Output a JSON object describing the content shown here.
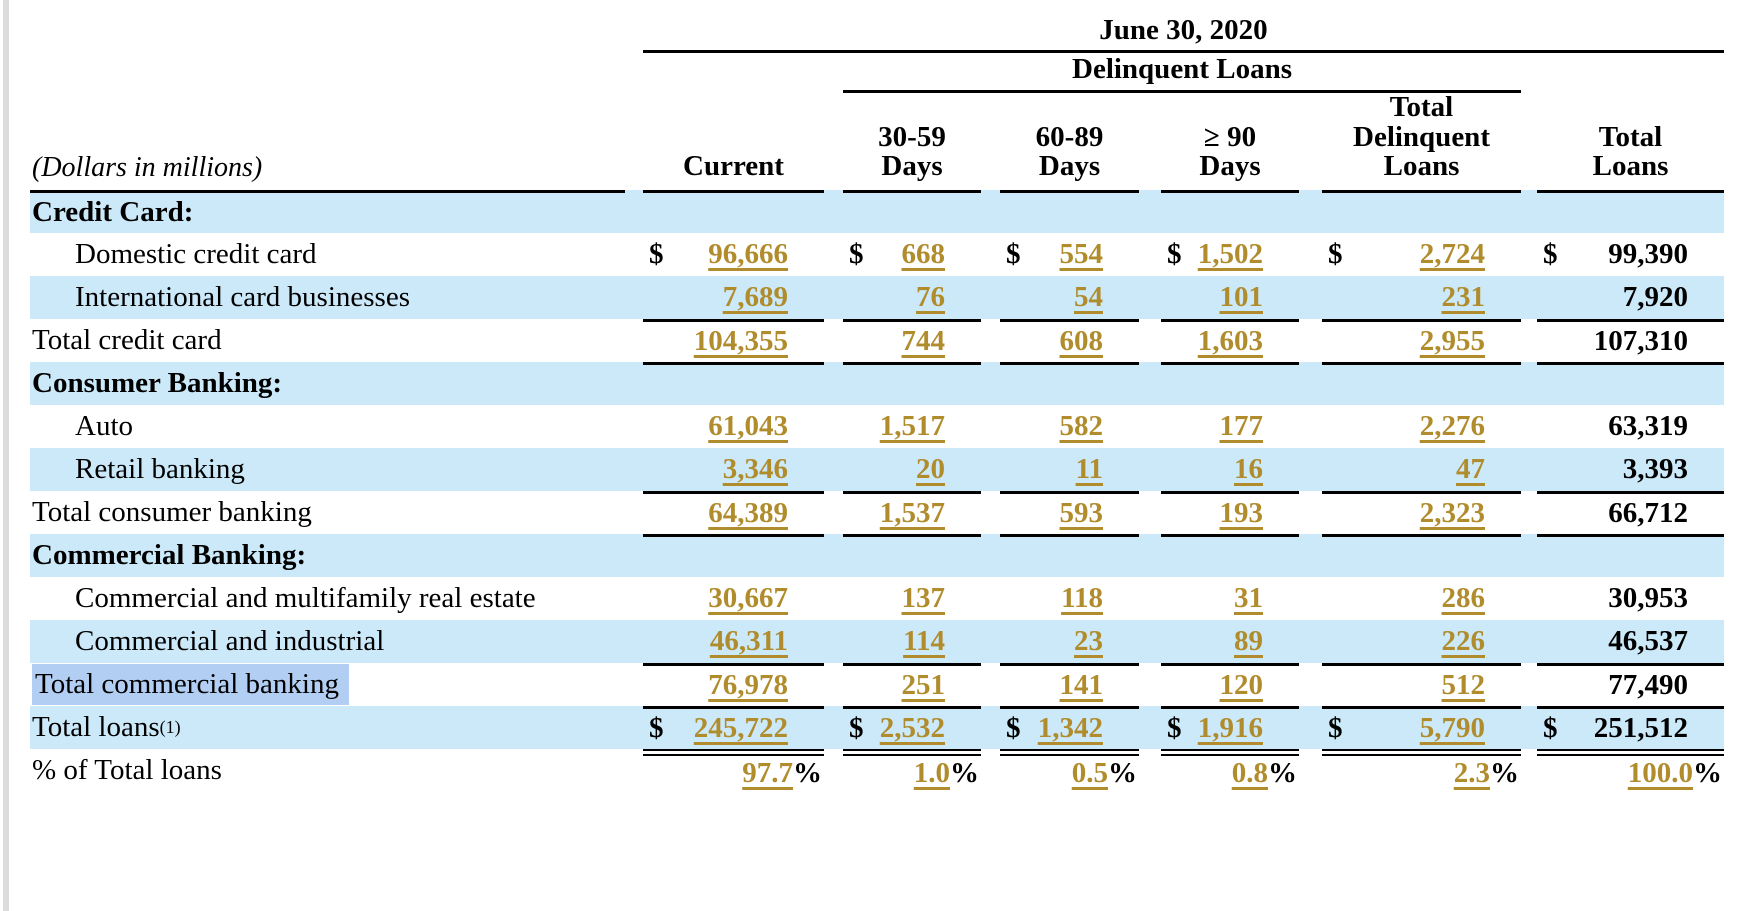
{
  "table": {
    "date_header": "June 30, 2020",
    "group_header": "Delinquent Loans",
    "dollars_note": "(Dollars in millions)",
    "columns": [
      {
        "id": "current",
        "lines": [
          "Current"
        ]
      },
      {
        "id": "days-30-59",
        "lines": [
          "30-59",
          "Days"
        ]
      },
      {
        "id": "days-60-89",
        "lines": [
          "60-89",
          "Days"
        ]
      },
      {
        "id": "days-90-plus",
        "lines": [
          "≥ 90",
          "Days"
        ]
      },
      {
        "id": "total-delinquent",
        "lines": [
          "Total",
          "Delinquent",
          "Loans"
        ]
      },
      {
        "id": "total-loans",
        "lines": [
          "Total",
          "Loans"
        ]
      }
    ],
    "rows": [
      {
        "id": "credit-card-header",
        "type": "section",
        "label": "Credit Card:",
        "shaded": true,
        "rule_above": "all",
        "values": []
      },
      {
        "id": "domestic-credit-card",
        "type": "item",
        "label": "Domestic credit card",
        "shaded": false,
        "dollar": true,
        "values": [
          "96,666",
          "668",
          "554",
          "1,502",
          "2,724",
          "99,390"
        ]
      },
      {
        "id": "international-card-businesses",
        "type": "item",
        "label": "International card businesses",
        "shaded": true,
        "values": [
          "7,689",
          "76",
          "54",
          "101",
          "231",
          "7,920"
        ]
      },
      {
        "id": "total-credit-card",
        "type": "total",
        "label": "Total credit card",
        "shaded": false,
        "rule_above": "nums",
        "values": [
          "104,355",
          "744",
          "608",
          "1,603",
          "2,955",
          "107,310"
        ]
      },
      {
        "id": "consumer-banking-header",
        "type": "section",
        "label": "Consumer Banking:",
        "shaded": true,
        "rule_above": "nums",
        "values": []
      },
      {
        "id": "auto",
        "type": "item",
        "label": "Auto",
        "shaded": false,
        "values": [
          "61,043",
          "1,517",
          "582",
          "177",
          "2,276",
          "63,319"
        ]
      },
      {
        "id": "retail-banking",
        "type": "item",
        "label": "Retail banking",
        "shaded": true,
        "values": [
          "3,346",
          "20",
          "11",
          "16",
          "47",
          "3,393"
        ]
      },
      {
        "id": "total-consumer-banking",
        "type": "total",
        "label": "Total consumer banking",
        "shaded": false,
        "rule_above": "nums",
        "values": [
          "64,389",
          "1,537",
          "593",
          "193",
          "2,323",
          "66,712"
        ]
      },
      {
        "id": "commercial-banking-header",
        "type": "section",
        "label": "Commercial Banking:",
        "shaded": true,
        "rule_above": "nums",
        "values": []
      },
      {
        "id": "commercial-and-multifamily-real-estate",
        "type": "item",
        "label": "Commercial and multifamily real estate",
        "shaded": false,
        "values": [
          "30,667",
          "137",
          "118",
          "31",
          "286",
          "30,953"
        ]
      },
      {
        "id": "commercial-and-industrial",
        "type": "item",
        "label": "Commercial and industrial",
        "shaded": true,
        "values": [
          "46,311",
          "114",
          "23",
          "89",
          "226",
          "46,537"
        ]
      },
      {
        "id": "total-commercial-banking",
        "type": "total",
        "label": "Total commercial banking",
        "shaded": false,
        "highlight": true,
        "rule_above": "nums",
        "values": [
          "76,978",
          "251",
          "141",
          "120",
          "512",
          "77,490"
        ]
      },
      {
        "id": "total-loans",
        "type": "total",
        "label": "Total loans",
        "footnote": true,
        "shaded": true,
        "dollar": true,
        "rule_above": "nums",
        "values": [
          "245,722",
          "2,532",
          "1,342",
          "1,916",
          "5,790",
          "251,512"
        ]
      },
      {
        "id": "percent-of-total-loans",
        "type": "percent",
        "label": "% of Total loans",
        "shaded": false,
        "percent": true,
        "rule_above": "double",
        "values": [
          "97.7",
          "1.0",
          "0.5",
          "0.8",
          "2.3",
          "100.0"
        ]
      }
    ]
  },
  "symbols": {
    "dollar": "$",
    "percent": "%",
    "footnote_marker": "(1)"
  },
  "colors": {
    "row_shade": "#cbe9f9",
    "fact_gold": "#b08c2c",
    "selection_highlight": "#b3cef3",
    "rule_black": "#000000"
  }
}
